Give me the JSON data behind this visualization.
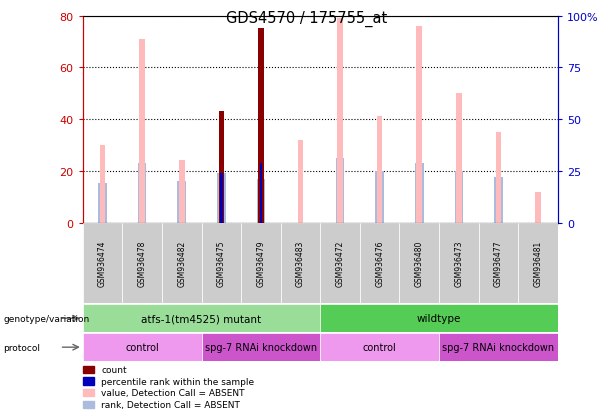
{
  "title": "GDS4570 / 175755_at",
  "samples": [
    "GSM936474",
    "GSM936478",
    "GSM936482",
    "GSM936475",
    "GSM936479",
    "GSM936483",
    "GSM936472",
    "GSM936476",
    "GSM936480",
    "GSM936473",
    "GSM936477",
    "GSM936481"
  ],
  "count_values": [
    null,
    null,
    null,
    43,
    75,
    null,
    null,
    null,
    null,
    null,
    null,
    null
  ],
  "percentile_rank_left": [
    null,
    null,
    null,
    24,
    29,
    null,
    null,
    null,
    null,
    null,
    null,
    null
  ],
  "pink_bar_values": [
    30,
    71,
    24,
    null,
    30,
    32,
    79,
    41,
    76,
    50,
    35,
    12
  ],
  "light_blue_values_right": [
    19,
    29,
    20,
    24,
    21,
    null,
    31,
    25,
    29,
    25,
    22,
    null
  ],
  "ylim_left": [
    0,
    80
  ],
  "ylim_right": [
    0,
    100
  ],
  "yticks_left": [
    0,
    20,
    40,
    60,
    80
  ],
  "yticks_right": [
    0,
    25,
    50,
    75,
    100
  ],
  "left_ycolor": "#cc0000",
  "right_ycolor": "#0000cc",
  "genotype_groups": [
    {
      "label": "atfs-1(tm4525) mutant",
      "start": 0,
      "end": 6,
      "color": "#99dd99"
    },
    {
      "label": "wildtype",
      "start": 6,
      "end": 12,
      "color": "#55cc55"
    }
  ],
  "protocol_groups": [
    {
      "label": "control",
      "start": 0,
      "end": 3,
      "color": "#ee99ee"
    },
    {
      "label": "spg-7 RNAi knockdown",
      "start": 3,
      "end": 6,
      "color": "#cc55cc"
    },
    {
      "label": "control",
      "start": 6,
      "end": 9,
      "color": "#ee99ee"
    },
    {
      "label": "spg-7 RNAi knockdown",
      "start": 9,
      "end": 12,
      "color": "#cc55cc"
    }
  ],
  "pink_color": "#ffbbbb",
  "light_blue_color": "#aabbdd",
  "count_color": "#880000",
  "percentile_color": "#0000bb",
  "sample_bg_color": "#cccccc",
  "plot_bg": "#ffffff",
  "legend_items": [
    {
      "label": "count",
      "color": "#880000"
    },
    {
      "label": "percentile rank within the sample",
      "color": "#0000bb"
    },
    {
      "label": "value, Detection Call = ABSENT",
      "color": "#ffbbbb"
    },
    {
      "label": "rank, Detection Call = ABSENT",
      "color": "#aabbdd"
    }
  ]
}
